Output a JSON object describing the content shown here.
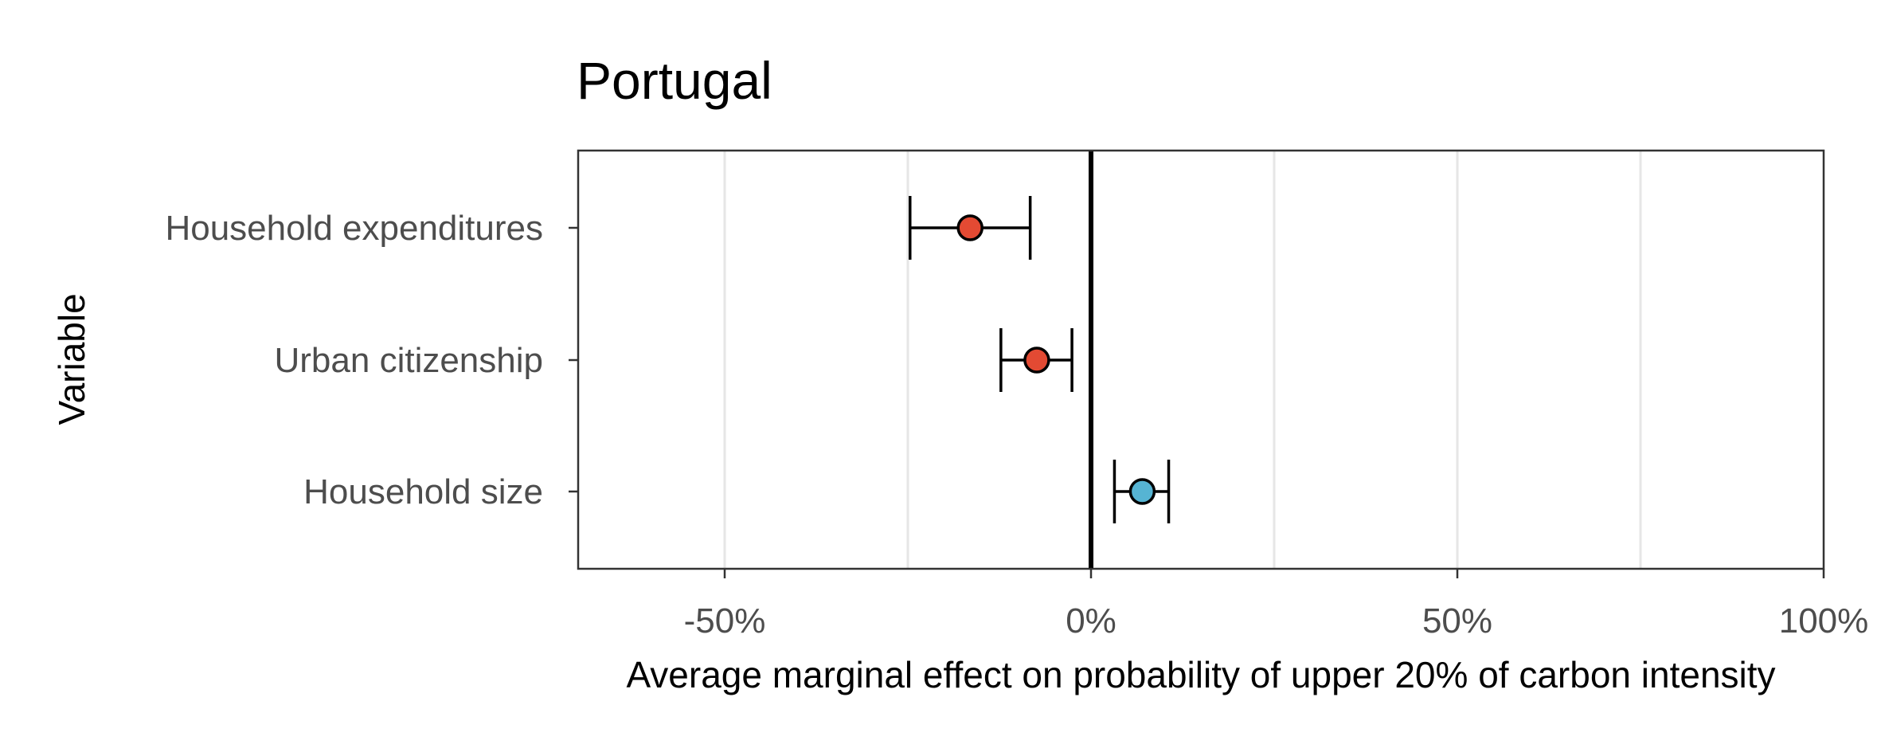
{
  "chart_data": {
    "type": "scatter",
    "title": "Portugal",
    "xlabel": "Average marginal effect on probability of upper 20% of carbon intensity",
    "ylabel": "Variable",
    "xlim": [
      -70,
      100
    ],
    "x_ticks": [
      -50,
      0,
      50,
      100
    ],
    "x_tick_labels": [
      "-50%",
      "0%",
      "50%",
      "100%"
    ],
    "x_minor_grid": [
      -25,
      25,
      75
    ],
    "reference_line": 0,
    "grid": true,
    "categories": [
      "Household expenditures",
      "Urban citizenship",
      "Household size"
    ],
    "points": [
      {
        "label": "Household expenditures",
        "estimate": -16.5,
        "lower": -24.7,
        "upper": -8.3,
        "color": "#e34a33"
      },
      {
        "label": "Urban citizenship",
        "estimate": -7.4,
        "lower": -12.3,
        "upper": -2.6,
        "color": "#e34a33"
      },
      {
        "label": "Household size",
        "estimate": 7.0,
        "lower": 3.2,
        "upper": 10.6,
        "color": "#56b4d3"
      }
    ]
  }
}
